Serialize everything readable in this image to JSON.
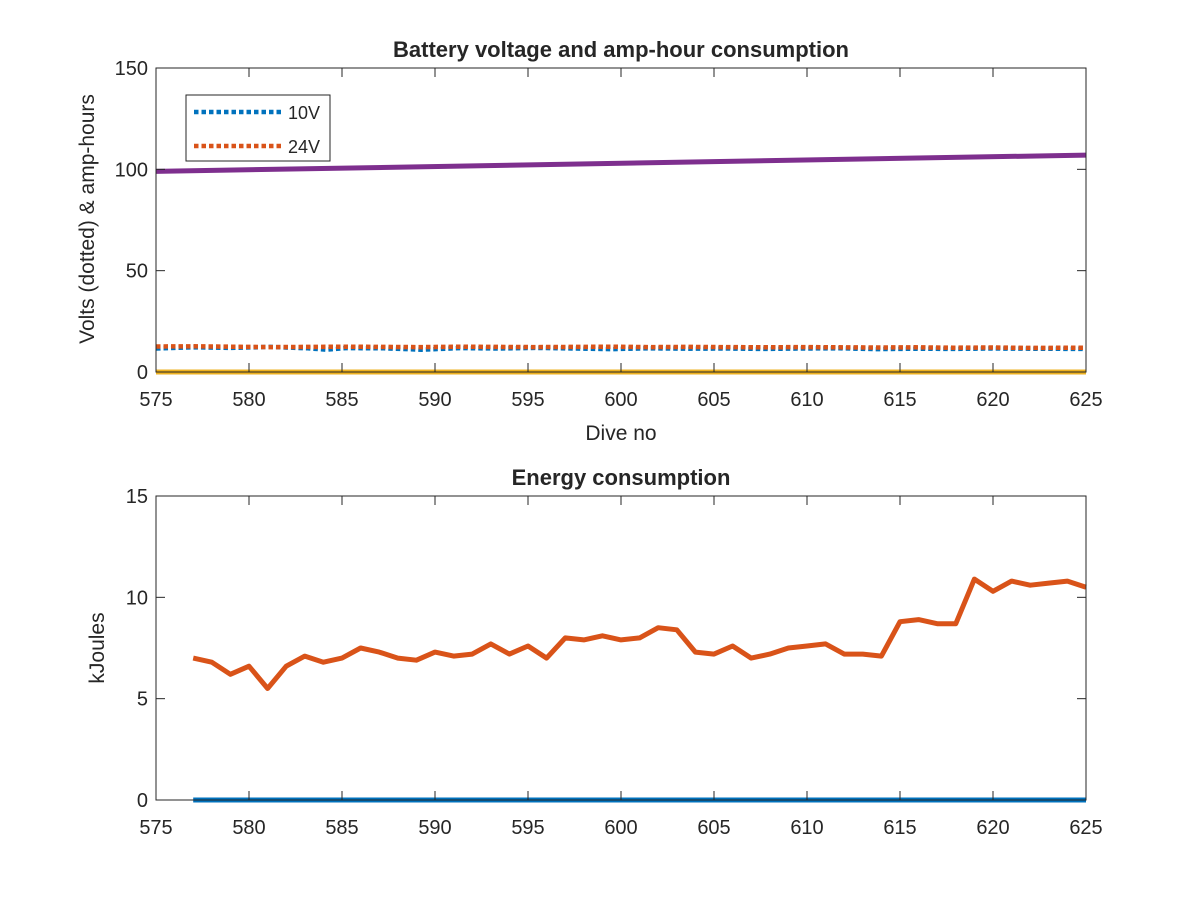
{
  "chart_data": [
    {
      "type": "line",
      "title": "Battery voltage and amp-hour consumption",
      "xlabel": "Dive no",
      "ylabel": "Volts (dotted) & amp-hours",
      "xlim": [
        576,
        625
      ],
      "ylim": [
        0,
        150
      ],
      "xticks": [
        575,
        580,
        585,
        590,
        595,
        600,
        605,
        610,
        615,
        620,
        625
      ],
      "yticks": [
        0,
        50,
        100,
        150
      ],
      "legend_position": "top-left",
      "series": [
        {
          "name": "10V",
          "color": "#0072BD",
          "style": "dotted",
          "x": [
            576,
            578,
            580,
            582,
            584,
            585,
            586,
            588,
            590,
            592,
            594,
            596,
            598,
            600,
            602,
            604,
            606,
            608,
            610,
            612,
            614,
            616,
            618,
            620,
            622,
            625
          ],
          "y": [
            11.6,
            12.2,
            11.9,
            12.4,
            11.7,
            11.0,
            11.8,
            11.7,
            11.0,
            11.8,
            11.6,
            11.9,
            11.6,
            11.3,
            11.7,
            11.5,
            11.6,
            11.4,
            11.6,
            11.7,
            11.3,
            11.5,
            11.4,
            11.6,
            11.5,
            11.4
          ]
        },
        {
          "name": "24V",
          "color": "#D95319",
          "style": "dotted",
          "x": [
            576,
            578,
            580,
            582,
            584,
            586,
            588,
            590,
            592,
            594,
            596,
            598,
            600,
            602,
            604,
            606,
            608,
            610,
            612,
            614,
            616,
            618,
            620,
            622,
            625
          ],
          "y": [
            12.6,
            12.7,
            12.5,
            12.3,
            12.4,
            12.5,
            12.4,
            12.3,
            12.5,
            12.4,
            12.3,
            12.4,
            12.5,
            12.3,
            12.4,
            12.3,
            12.2,
            12.3,
            12.2,
            12.1,
            12.2,
            12.0,
            12.1,
            11.9,
            12.0
          ]
        },
        {
          "color": "#7E2F8E",
          "style": "solid",
          "x": [
            576,
            625
          ],
          "y": [
            99,
            107
          ]
        },
        {
          "color": "#EDB120",
          "style": "solid",
          "x": [
            576,
            625
          ],
          "y": [
            0,
            0
          ]
        }
      ]
    },
    {
      "type": "line",
      "title": "Energy consumption",
      "xlabel": "",
      "ylabel": "kJoules",
      "xlim": [
        575,
        625
      ],
      "ylim": [
        0,
        15
      ],
      "xticks": [
        575,
        580,
        585,
        590,
        595,
        600,
        605,
        610,
        615,
        620,
        625
      ],
      "yticks": [
        0,
        5,
        10,
        15
      ],
      "series": [
        {
          "color": "#D95319",
          "style": "solid",
          "x": [
            577,
            578,
            579,
            580,
            581,
            582,
            583,
            584,
            585,
            586,
            587,
            588,
            589,
            590,
            591,
            592,
            593,
            594,
            595,
            596,
            597,
            598,
            599,
            600,
            601,
            602,
            603,
            604,
            605,
            606,
            607,
            608,
            609,
            610,
            611,
            612,
            613,
            614,
            615,
            616,
            617,
            618,
            619,
            620,
            621,
            622,
            623,
            624,
            625
          ],
          "y": [
            7.0,
            6.8,
            6.2,
            6.6,
            5.5,
            6.6,
            7.1,
            6.8,
            7.0,
            7.5,
            7.3,
            7.0,
            6.9,
            7.3,
            7.1,
            7.2,
            7.7,
            7.2,
            7.6,
            7.0,
            8.0,
            7.9,
            8.1,
            7.9,
            8.0,
            8.5,
            8.4,
            7.3,
            7.2,
            7.6,
            7.0,
            7.2,
            7.5,
            7.6,
            7.7,
            7.2,
            7.2,
            7.1,
            8.8,
            8.9,
            8.7,
            8.7,
            10.9,
            10.3,
            10.8,
            10.6,
            10.7,
            10.8,
            10.5
          ]
        },
        {
          "color": "#0072BD",
          "style": "solid",
          "x": [
            577,
            625
          ],
          "y": [
            0,
            0
          ]
        }
      ]
    }
  ]
}
